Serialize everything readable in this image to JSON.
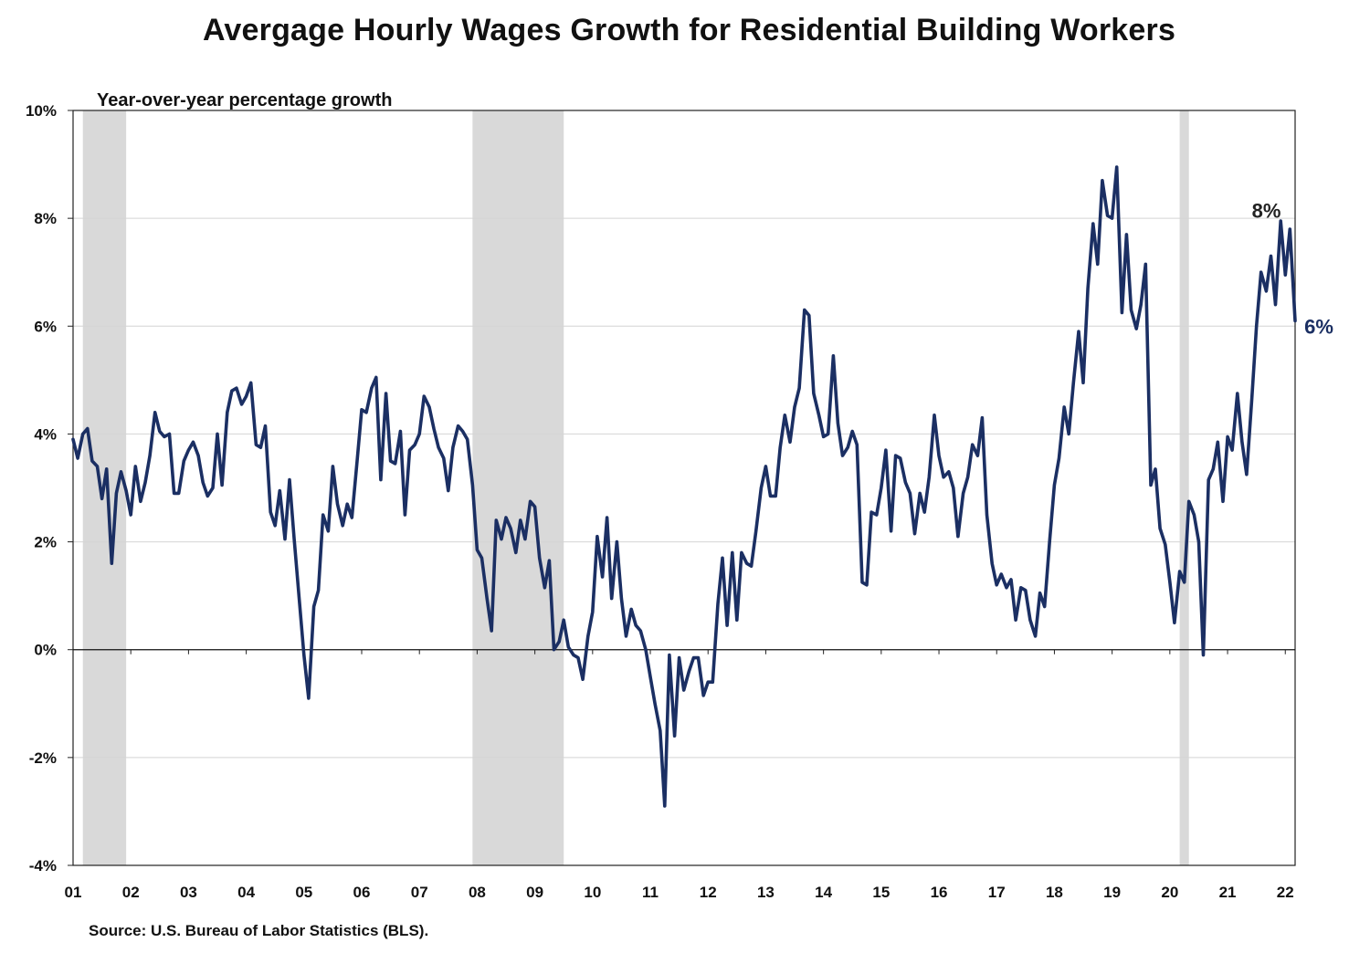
{
  "chart_data": {
    "type": "line",
    "title": "Avergage Hourly Wages Growth for Residential Building Workers",
    "subtitle": "Year-over-year percentage growth",
    "source": "Source: U.S. Bureau of Labor Statistics (BLS).",
    "ylim": [
      -4,
      10
    ],
    "yticks": [
      -4,
      -2,
      0,
      2,
      4,
      6,
      8,
      10
    ],
    "ytick_labels": [
      "-4%",
      "-2%",
      "0%",
      "2%",
      "4%",
      "6%",
      "8%",
      "10%"
    ],
    "xlim": [
      2001.0,
      2022.17
    ],
    "xticks": [
      2001,
      2002,
      2003,
      2004,
      2005,
      2006,
      2007,
      2008,
      2009,
      2010,
      2011,
      2012,
      2013,
      2014,
      2015,
      2016,
      2017,
      2018,
      2019,
      2020,
      2021,
      2022
    ],
    "xtick_labels": [
      "01",
      "02",
      "03",
      "04",
      "05",
      "06",
      "07",
      "08",
      "09",
      "10",
      "11",
      "12",
      "13",
      "14",
      "15",
      "16",
      "17",
      "18",
      "19",
      "20",
      "21",
      "22"
    ],
    "grid": true,
    "line_color": "#1b2f63",
    "recession_color": "#d9d9d9",
    "recessions": [
      [
        2001.17,
        2001.92
      ],
      [
        2007.92,
        2009.5
      ],
      [
        2020.17,
        2020.33
      ]
    ],
    "annotations": [
      {
        "text": "8%",
        "x": 2021.42,
        "y": 8.15,
        "color": "#222222"
      },
      {
        "text": "6%",
        "x": 2022.33,
        "y": 6.0,
        "color": "#1b2f63"
      }
    ],
    "series": [
      {
        "values": [
          [
            2001.0,
            3.9
          ],
          [
            2001.08,
            3.55
          ],
          [
            2001.17,
            4.0
          ],
          [
            2001.25,
            4.1
          ],
          [
            2001.33,
            3.5
          ],
          [
            2001.42,
            3.4
          ],
          [
            2001.5,
            2.8
          ],
          [
            2001.58,
            3.35
          ],
          [
            2001.67,
            1.6
          ],
          [
            2001.75,
            2.9
          ],
          [
            2001.83,
            3.3
          ],
          [
            2001.92,
            2.95
          ],
          [
            2002.0,
            2.5
          ],
          [
            2002.08,
            3.4
          ],
          [
            2002.17,
            2.75
          ],
          [
            2002.25,
            3.1
          ],
          [
            2002.33,
            3.6
          ],
          [
            2002.42,
            4.4
          ],
          [
            2002.5,
            4.05
          ],
          [
            2002.58,
            3.95
          ],
          [
            2002.67,
            4.0
          ],
          [
            2002.75,
            2.9
          ],
          [
            2002.83,
            2.9
          ],
          [
            2002.92,
            3.5
          ],
          [
            2003.0,
            3.7
          ],
          [
            2003.08,
            3.85
          ],
          [
            2003.17,
            3.6
          ],
          [
            2003.25,
            3.1
          ],
          [
            2003.33,
            2.85
          ],
          [
            2003.42,
            3.0
          ],
          [
            2003.5,
            4.0
          ],
          [
            2003.58,
            3.05
          ],
          [
            2003.67,
            4.4
          ],
          [
            2003.75,
            4.8
          ],
          [
            2003.83,
            4.85
          ],
          [
            2003.92,
            4.55
          ],
          [
            2004.0,
            4.7
          ],
          [
            2004.08,
            4.95
          ],
          [
            2004.17,
            3.8
          ],
          [
            2004.25,
            3.75
          ],
          [
            2004.33,
            4.15
          ],
          [
            2004.42,
            2.55
          ],
          [
            2004.5,
            2.3
          ],
          [
            2004.58,
            2.95
          ],
          [
            2004.67,
            2.05
          ],
          [
            2004.75,
            3.15
          ],
          [
            2004.83,
            2.05
          ],
          [
            2004.92,
            0.9
          ],
          [
            2005.0,
            -0.1
          ],
          [
            2005.08,
            -0.9
          ],
          [
            2005.17,
            0.8
          ],
          [
            2005.25,
            1.1
          ],
          [
            2005.33,
            2.5
          ],
          [
            2005.42,
            2.2
          ],
          [
            2005.5,
            3.4
          ],
          [
            2005.58,
            2.7
          ],
          [
            2005.67,
            2.3
          ],
          [
            2005.75,
            2.7
          ],
          [
            2005.83,
            2.45
          ],
          [
            2005.92,
            3.5
          ],
          [
            2006.0,
            4.45
          ],
          [
            2006.08,
            4.4
          ],
          [
            2006.17,
            4.85
          ],
          [
            2006.25,
            5.05
          ],
          [
            2006.33,
            3.15
          ],
          [
            2006.42,
            4.75
          ],
          [
            2006.5,
            3.5
          ],
          [
            2006.58,
            3.45
          ],
          [
            2006.67,
            4.05
          ],
          [
            2006.75,
            2.5
          ],
          [
            2006.83,
            3.7
          ],
          [
            2006.92,
            3.8
          ],
          [
            2007.0,
            4.0
          ],
          [
            2007.08,
            4.7
          ],
          [
            2007.17,
            4.5
          ],
          [
            2007.25,
            4.1
          ],
          [
            2007.33,
            3.75
          ],
          [
            2007.42,
            3.55
          ],
          [
            2007.5,
            2.95
          ],
          [
            2007.58,
            3.75
          ],
          [
            2007.67,
            4.15
          ],
          [
            2007.75,
            4.05
          ],
          [
            2007.83,
            3.9
          ],
          [
            2007.92,
            3.05
          ],
          [
            2008.0,
            1.85
          ],
          [
            2008.08,
            1.7
          ],
          [
            2008.17,
            0.95
          ],
          [
            2008.25,
            0.35
          ],
          [
            2008.33,
            2.4
          ],
          [
            2008.42,
            2.05
          ],
          [
            2008.5,
            2.45
          ],
          [
            2008.58,
            2.25
          ],
          [
            2008.67,
            1.8
          ],
          [
            2008.75,
            2.4
          ],
          [
            2008.83,
            2.05
          ],
          [
            2008.92,
            2.75
          ],
          [
            2009.0,
            2.65
          ],
          [
            2009.08,
            1.7
          ],
          [
            2009.17,
            1.15
          ],
          [
            2009.25,
            1.65
          ],
          [
            2009.33,
            0.0
          ],
          [
            2009.42,
            0.15
          ],
          [
            2009.5,
            0.55
          ],
          [
            2009.58,
            0.05
          ],
          [
            2009.67,
            -0.1
          ],
          [
            2009.75,
            -0.15
          ],
          [
            2009.83,
            -0.55
          ],
          [
            2009.92,
            0.25
          ],
          [
            2010.0,
            0.7
          ],
          [
            2010.08,
            2.1
          ],
          [
            2010.17,
            1.35
          ],
          [
            2010.25,
            2.45
          ],
          [
            2010.33,
            0.95
          ],
          [
            2010.42,
            2.0
          ],
          [
            2010.5,
            0.95
          ],
          [
            2010.58,
            0.25
          ],
          [
            2010.67,
            0.75
          ],
          [
            2010.75,
            0.45
          ],
          [
            2010.83,
            0.35
          ],
          [
            2010.92,
            0.0
          ],
          [
            2011.0,
            -0.5
          ],
          [
            2011.08,
            -1.0
          ],
          [
            2011.17,
            -1.5
          ],
          [
            2011.25,
            -2.9
          ],
          [
            2011.33,
            -0.1
          ],
          [
            2011.42,
            -1.6
          ],
          [
            2011.5,
            -0.15
          ],
          [
            2011.58,
            -0.75
          ],
          [
            2011.67,
            -0.4
          ],
          [
            2011.75,
            -0.15
          ],
          [
            2011.83,
            -0.15
          ],
          [
            2011.92,
            -0.85
          ],
          [
            2012.0,
            -0.6
          ],
          [
            2012.08,
            -0.6
          ],
          [
            2012.17,
            0.85
          ],
          [
            2012.25,
            1.7
          ],
          [
            2012.33,
            0.45
          ],
          [
            2012.42,
            1.8
          ],
          [
            2012.5,
            0.55
          ],
          [
            2012.58,
            1.8
          ],
          [
            2012.67,
            1.6
          ],
          [
            2012.75,
            1.55
          ],
          [
            2012.83,
            2.2
          ],
          [
            2012.92,
            3.0
          ],
          [
            2013.0,
            3.4
          ],
          [
            2013.08,
            2.85
          ],
          [
            2013.17,
            2.85
          ],
          [
            2013.25,
            3.75
          ],
          [
            2013.33,
            4.35
          ],
          [
            2013.42,
            3.85
          ],
          [
            2013.5,
            4.5
          ],
          [
            2013.58,
            4.85
          ],
          [
            2013.67,
            6.3
          ],
          [
            2013.75,
            6.2
          ],
          [
            2013.83,
            4.75
          ],
          [
            2013.92,
            4.35
          ],
          [
            2014.0,
            3.95
          ],
          [
            2014.08,
            4.0
          ],
          [
            2014.17,
            5.45
          ],
          [
            2014.25,
            4.2
          ],
          [
            2014.33,
            3.6
          ],
          [
            2014.42,
            3.75
          ],
          [
            2014.5,
            4.05
          ],
          [
            2014.58,
            3.8
          ],
          [
            2014.67,
            1.25
          ],
          [
            2014.75,
            1.2
          ],
          [
            2014.83,
            2.55
          ],
          [
            2014.92,
            2.5
          ],
          [
            2015.0,
            3.0
          ],
          [
            2015.08,
            3.7
          ],
          [
            2015.17,
            2.2
          ],
          [
            2015.25,
            3.6
          ],
          [
            2015.33,
            3.55
          ],
          [
            2015.42,
            3.1
          ],
          [
            2015.5,
            2.9
          ],
          [
            2015.58,
            2.15
          ],
          [
            2015.67,
            2.9
          ],
          [
            2015.75,
            2.55
          ],
          [
            2015.83,
            3.2
          ],
          [
            2015.92,
            4.35
          ],
          [
            2016.0,
            3.6
          ],
          [
            2016.08,
            3.2
          ],
          [
            2016.17,
            3.3
          ],
          [
            2016.25,
            3.0
          ],
          [
            2016.33,
            2.1
          ],
          [
            2016.42,
            2.9
          ],
          [
            2016.5,
            3.2
          ],
          [
            2016.58,
            3.8
          ],
          [
            2016.67,
            3.6
          ],
          [
            2016.75,
            4.3
          ],
          [
            2016.83,
            2.5
          ],
          [
            2016.92,
            1.6
          ],
          [
            2017.0,
            1.2
          ],
          [
            2017.08,
            1.4
          ],
          [
            2017.17,
            1.15
          ],
          [
            2017.25,
            1.3
          ],
          [
            2017.33,
            0.55
          ],
          [
            2017.42,
            1.15
          ],
          [
            2017.5,
            1.1
          ],
          [
            2017.58,
            0.55
          ],
          [
            2017.67,
            0.25
          ],
          [
            2017.75,
            1.05
          ],
          [
            2017.83,
            0.8
          ],
          [
            2017.92,
            2.05
          ],
          [
            2018.0,
            3.05
          ],
          [
            2018.08,
            3.55
          ],
          [
            2018.17,
            4.5
          ],
          [
            2018.25,
            4.0
          ],
          [
            2018.33,
            4.95
          ],
          [
            2018.42,
            5.9
          ],
          [
            2018.5,
            4.95
          ],
          [
            2018.58,
            6.7
          ],
          [
            2018.67,
            7.9
          ],
          [
            2018.75,
            7.15
          ],
          [
            2018.83,
            8.7
          ],
          [
            2018.92,
            8.05
          ],
          [
            2019.0,
            8.0
          ],
          [
            2019.08,
            8.95
          ],
          [
            2019.17,
            6.25
          ],
          [
            2019.25,
            7.7
          ],
          [
            2019.33,
            6.3
          ],
          [
            2019.42,
            5.95
          ],
          [
            2019.5,
            6.4
          ],
          [
            2019.58,
            7.15
          ],
          [
            2019.67,
            3.05
          ],
          [
            2019.75,
            3.35
          ],
          [
            2019.83,
            2.25
          ],
          [
            2019.92,
            1.95
          ],
          [
            2020.0,
            1.25
          ],
          [
            2020.08,
            0.5
          ],
          [
            2020.17,
            1.45
          ],
          [
            2020.25,
            1.25
          ],
          [
            2020.33,
            2.75
          ],
          [
            2020.42,
            2.5
          ],
          [
            2020.5,
            2.0
          ],
          [
            2020.58,
            -0.1
          ],
          [
            2020.67,
            3.15
          ],
          [
            2020.75,
            3.35
          ],
          [
            2020.83,
            3.85
          ],
          [
            2020.92,
            2.75
          ],
          [
            2021.0,
            3.95
          ],
          [
            2021.08,
            3.7
          ],
          [
            2021.17,
            4.75
          ],
          [
            2021.25,
            3.85
          ],
          [
            2021.33,
            3.25
          ],
          [
            2021.42,
            4.65
          ],
          [
            2021.5,
            6.0
          ],
          [
            2021.58,
            7.0
          ],
          [
            2021.67,
            6.65
          ],
          [
            2021.75,
            7.3
          ],
          [
            2021.83,
            6.4
          ],
          [
            2021.92,
            7.95
          ],
          [
            2022.0,
            6.95
          ],
          [
            2022.08,
            7.8
          ],
          [
            2022.17,
            6.1
          ]
        ]
      }
    ]
  }
}
